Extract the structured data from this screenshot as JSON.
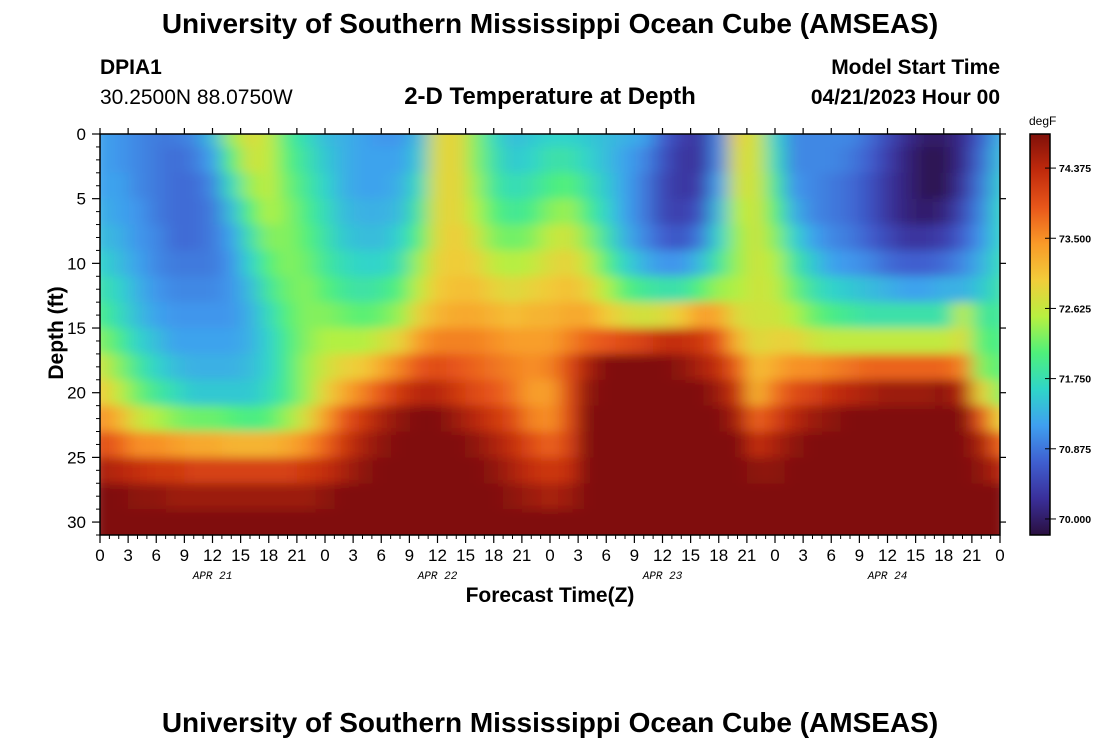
{
  "page": {
    "title_top": "University of Southern Mississippi Ocean Cube (AMSEAS)",
    "title_bottom": "University of Southern Mississippi Ocean Cube (AMSEAS)",
    "station_name": "DPIA1",
    "station_coords": "30.2500N  88.0750W",
    "model_start_label": "Model Start Time",
    "model_start_time": "04/21/2023 Hour 00"
  },
  "chart_data": {
    "type": "heatmap",
    "title": "2-D Temperature at Depth",
    "xlabel": "Forecast Time(Z)",
    "ylabel": "Depth (ft)",
    "x_range_hours": [
      0,
      96
    ],
    "y_range_ft": [
      0,
      31
    ],
    "y_ticks": [
      0,
      5,
      10,
      15,
      20,
      25,
      30
    ],
    "x_tick_labels": [
      "0",
      "3",
      "6",
      "9",
      "12",
      "15",
      "18",
      "21",
      "0",
      "3",
      "6",
      "9",
      "12",
      "15",
      "18",
      "21",
      "0",
      "3",
      "6",
      "9",
      "12",
      "15",
      "18",
      "21",
      "0",
      "3",
      "6",
      "9",
      "12",
      "15",
      "18",
      "21",
      "0"
    ],
    "date_labels": [
      {
        "label": "APR 21",
        "hour": 12
      },
      {
        "label": "APR 22",
        "hour": 36
      },
      {
        "label": "APR 23",
        "hour": 60
      },
      {
        "label": "APR 24",
        "hour": 84
      }
    ],
    "colorbar": {
      "unit": "degF",
      "min": 69.8,
      "max": 74.8,
      "tick_values": [
        70.0,
        70.875,
        71.75,
        72.625,
        73.5,
        74.375
      ],
      "tick_labels": [
        "70.000",
        "70.875",
        "71.750",
        "72.625",
        "73.500",
        "74.375"
      ],
      "colors": [
        "#2a0f3f",
        "#3a2f9a",
        "#3f5fd0",
        "#3f9ff0",
        "#2fd6c8",
        "#4ff07a",
        "#b8f040",
        "#f2cc3a",
        "#f99a28",
        "#e8561a",
        "#c02a0c",
        "#80100a"
      ]
    },
    "columns_hours": [
      0,
      2,
      4,
      6,
      8,
      10,
      12,
      14,
      16,
      18,
      20,
      22,
      24,
      26,
      28,
      30,
      32,
      34,
      36,
      38,
      40,
      42,
      44,
      46,
      48,
      50,
      52,
      54,
      56,
      58,
      60,
      62,
      64,
      66,
      68,
      70,
      72,
      74,
      76,
      78,
      80,
      82,
      84,
      86,
      88,
      90,
      92,
      94,
      96
    ],
    "rows_depth_ft": [
      0,
      2,
      4,
      6,
      8,
      10,
      12,
      14,
      16,
      18,
      20,
      22,
      24,
      26,
      28,
      30,
      31
    ],
    "values_degF": [
      [
        71.2,
        71.1,
        71.0,
        70.9,
        70.9,
        71.0,
        71.4,
        72.4,
        72.8,
        72.6,
        72.0,
        71.7,
        71.4,
        71.3,
        71.2,
        71.1,
        71.1,
        71.4,
        72.8,
        72.9,
        72.3,
        71.7,
        71.4,
        71.5,
        71.6,
        71.6,
        71.5,
        71.4,
        71.3,
        71.2,
        70.7,
        70.4,
        70.3,
        71.0,
        72.9,
        72.7,
        71.6,
        71.0,
        71.0,
        71.0,
        71.0,
        70.8,
        70.5,
        70.2,
        70.0,
        70.0,
        70.2,
        70.7,
        71.3
      ],
      [
        71.2,
        71.1,
        71.0,
        70.9,
        70.8,
        70.9,
        71.2,
        72.1,
        72.7,
        72.6,
        72.1,
        71.8,
        71.5,
        71.3,
        71.2,
        71.2,
        71.2,
        71.5,
        72.8,
        72.9,
        72.3,
        71.8,
        71.5,
        71.6,
        71.8,
        71.8,
        71.6,
        71.4,
        71.2,
        71.0,
        70.6,
        70.3,
        70.3,
        71.0,
        72.8,
        72.7,
        71.7,
        71.0,
        71.0,
        71.0,
        70.9,
        70.7,
        70.4,
        70.1,
        69.9,
        69.9,
        70.2,
        70.8,
        71.4
      ],
      [
        71.2,
        71.2,
        71.0,
        70.9,
        70.8,
        70.8,
        71.0,
        71.7,
        72.4,
        72.6,
        72.2,
        71.9,
        71.6,
        71.3,
        71.2,
        71.2,
        71.3,
        71.7,
        72.8,
        72.9,
        72.4,
        71.9,
        71.7,
        71.8,
        72.0,
        72.1,
        71.8,
        71.5,
        71.2,
        70.9,
        70.5,
        70.3,
        70.4,
        71.2,
        72.7,
        72.7,
        71.9,
        71.1,
        71.0,
        70.9,
        70.8,
        70.6,
        70.3,
        70.1,
        69.9,
        69.9,
        70.3,
        70.9,
        71.5
      ],
      [
        71.3,
        71.2,
        71.1,
        70.9,
        70.8,
        70.8,
        70.9,
        71.4,
        72.1,
        72.5,
        72.3,
        72.0,
        71.7,
        71.4,
        71.3,
        71.3,
        71.4,
        71.9,
        72.8,
        72.9,
        72.5,
        72.1,
        71.9,
        72.0,
        72.3,
        72.4,
        72.0,
        71.6,
        71.2,
        70.9,
        70.5,
        70.4,
        70.6,
        71.4,
        72.5,
        72.7,
        72.1,
        71.3,
        71.0,
        70.9,
        70.8,
        70.6,
        70.3,
        70.1,
        70.0,
        70.1,
        70.5,
        71.0,
        71.6
      ],
      [
        71.4,
        71.3,
        71.1,
        71.0,
        70.8,
        70.8,
        70.9,
        71.2,
        71.8,
        72.3,
        72.3,
        72.1,
        71.8,
        71.5,
        71.4,
        71.4,
        71.6,
        72.1,
        72.8,
        73.0,
        72.7,
        72.3,
        72.2,
        72.3,
        72.6,
        72.7,
        72.3,
        71.8,
        71.3,
        71.0,
        70.7,
        70.6,
        70.9,
        71.6,
        72.4,
        72.7,
        72.3,
        71.6,
        71.2,
        71.0,
        70.9,
        70.7,
        70.5,
        70.3,
        70.3,
        70.4,
        70.7,
        71.1,
        71.6
      ],
      [
        71.6,
        71.4,
        71.2,
        71.0,
        70.9,
        70.9,
        70.9,
        71.1,
        71.6,
        72.1,
        72.3,
        72.2,
        71.9,
        71.7,
        71.6,
        71.6,
        71.8,
        72.4,
        72.9,
        73.0,
        72.9,
        72.6,
        72.5,
        72.6,
        72.8,
        72.9,
        72.6,
        72.1,
        71.6,
        71.3,
        71.1,
        71.1,
        71.4,
        71.9,
        72.4,
        72.7,
        72.5,
        71.9,
        71.5,
        71.2,
        71.1,
        71.0,
        70.8,
        70.7,
        70.7,
        70.8,
        71.0,
        71.3,
        71.7
      ],
      [
        71.8,
        71.6,
        71.3,
        71.1,
        71.0,
        71.0,
        71.0,
        71.1,
        71.4,
        71.9,
        72.2,
        72.3,
        72.1,
        71.9,
        71.8,
        71.9,
        72.1,
        72.6,
        73.0,
        73.1,
        73.1,
        72.9,
        72.8,
        72.9,
        73.0,
        73.1,
        72.9,
        72.5,
        72.1,
        71.9,
        71.8,
        71.8,
        72.1,
        72.4,
        72.5,
        72.7,
        72.6,
        72.2,
        71.8,
        71.6,
        71.5,
        71.4,
        71.3,
        71.2,
        71.2,
        71.3,
        71.3,
        71.5,
        71.8
      ],
      [
        72.0,
        71.7,
        71.4,
        71.2,
        71.1,
        71.1,
        71.1,
        71.1,
        71.3,
        71.7,
        72.1,
        72.3,
        72.3,
        72.2,
        72.1,
        72.2,
        72.4,
        72.9,
        73.2,
        73.3,
        73.3,
        73.2,
        73.1,
        73.2,
        73.2,
        73.3,
        73.3,
        73.0,
        72.8,
        72.7,
        72.8,
        73.0,
        73.4,
        73.3,
        72.8,
        72.7,
        72.7,
        72.5,
        72.2,
        72.0,
        71.9,
        71.8,
        71.8,
        71.8,
        71.8,
        71.8,
        72.6,
        71.9,
        71.9
      ],
      [
        72.3,
        72.0,
        71.6,
        71.4,
        71.2,
        71.2,
        71.2,
        71.2,
        71.3,
        71.6,
        72.0,
        72.3,
        72.5,
        72.5,
        72.5,
        72.7,
        72.9,
        73.4,
        73.6,
        73.6,
        73.6,
        73.5,
        73.4,
        73.4,
        73.4,
        73.6,
        73.8,
        73.9,
        74.0,
        74.1,
        74.3,
        74.3,
        74.2,
        73.9,
        73.2,
        72.8,
        72.9,
        72.9,
        72.7,
        72.6,
        72.6,
        72.6,
        72.6,
        72.6,
        72.6,
        72.6,
        72.8,
        72.1,
        72.0
      ],
      [
        72.7,
        72.3,
        71.9,
        71.6,
        71.4,
        71.3,
        71.3,
        71.3,
        71.4,
        71.6,
        72.0,
        72.4,
        72.7,
        72.9,
        73.0,
        73.3,
        73.6,
        73.9,
        74.0,
        73.9,
        73.8,
        73.7,
        73.6,
        73.5,
        73.6,
        74.0,
        74.5,
        74.8,
        74.9,
        74.9,
        74.8,
        74.7,
        74.5,
        74.3,
        73.8,
        73.1,
        73.3,
        73.5,
        73.5,
        73.6,
        73.7,
        73.8,
        73.8,
        73.8,
        73.8,
        73.8,
        73.6,
        72.3,
        72.1
      ],
      [
        73.0,
        72.6,
        72.2,
        71.9,
        71.7,
        71.5,
        71.5,
        71.5,
        71.5,
        71.7,
        72.0,
        72.4,
        72.9,
        73.3,
        73.6,
        73.9,
        74.2,
        74.4,
        74.4,
        74.2,
        74.0,
        73.9,
        73.7,
        73.4,
        73.4,
        74.0,
        74.7,
        75.0,
        75.0,
        75.0,
        74.9,
        74.8,
        74.8,
        74.6,
        74.2,
        73.2,
        73.7,
        74.0,
        74.1,
        74.3,
        74.4,
        74.5,
        74.6,
        74.6,
        74.6,
        74.7,
        74.4,
        72.9,
        72.3
      ],
      [
        73.5,
        73.2,
        72.7,
        72.5,
        72.3,
        72.2,
        72.2,
        72.1,
        72.0,
        72.1,
        72.4,
        72.8,
        73.4,
        73.9,
        74.2,
        74.5,
        74.7,
        74.8,
        74.8,
        74.6,
        74.4,
        74.2,
        74.0,
        73.6,
        73.5,
        74.0,
        74.8,
        75.0,
        75.0,
        75.0,
        75.0,
        74.9,
        74.9,
        74.8,
        74.5,
        73.8,
        74.1,
        74.4,
        74.6,
        74.7,
        74.8,
        74.9,
        74.9,
        74.9,
        74.9,
        74.9,
        74.8,
        73.9,
        72.9
      ],
      [
        74.0,
        73.8,
        73.5,
        73.5,
        73.4,
        73.3,
        73.3,
        73.2,
        73.2,
        73.2,
        73.3,
        73.5,
        73.8,
        74.2,
        74.5,
        74.7,
        74.8,
        74.9,
        74.9,
        74.8,
        74.7,
        74.5,
        74.3,
        74.0,
        73.8,
        74.1,
        74.8,
        75.0,
        75.0,
        75.0,
        75.0,
        75.0,
        75.0,
        74.9,
        74.8,
        74.3,
        74.5,
        74.7,
        74.8,
        74.9,
        75.0,
        75.0,
        75.0,
        75.0,
        75.0,
        75.0,
        74.9,
        74.5,
        73.8
      ],
      [
        74.5,
        74.4,
        74.3,
        74.2,
        74.2,
        74.1,
        74.1,
        74.1,
        74.1,
        74.1,
        74.1,
        74.2,
        74.3,
        74.5,
        74.7,
        74.8,
        74.9,
        75.0,
        75.0,
        74.9,
        74.8,
        74.7,
        74.5,
        74.3,
        74.2,
        74.3,
        74.8,
        75.0,
        75.0,
        75.0,
        75.0,
        75.0,
        75.0,
        75.0,
        74.9,
        74.7,
        74.7,
        74.8,
        74.9,
        75.0,
        75.0,
        75.0,
        75.0,
        75.0,
        75.0,
        75.0,
        74.9,
        74.7,
        74.4
      ],
      [
        74.8,
        74.8,
        74.7,
        74.7,
        74.6,
        74.6,
        74.6,
        74.6,
        74.6,
        74.6,
        74.6,
        74.6,
        74.7,
        74.8,
        74.9,
        74.9,
        75.0,
        75.0,
        75.0,
        75.0,
        74.9,
        74.8,
        74.7,
        74.6,
        74.5,
        74.6,
        74.9,
        75.0,
        75.0,
        75.0,
        75.0,
        75.0,
        75.0,
        75.0,
        75.0,
        74.9,
        74.9,
        74.9,
        75.0,
        75.0,
        75.0,
        75.0,
        75.0,
        75.0,
        75.0,
        75.0,
        75.0,
        74.9,
        74.8
      ],
      [
        75.0,
        75.0,
        75.0,
        75.0,
        74.9,
        74.9,
        74.9,
        74.9,
        74.9,
        74.9,
        74.9,
        74.9,
        74.9,
        75.0,
        75.0,
        75.0,
        75.0,
        75.0,
        75.0,
        75.0,
        75.0,
        75.0,
        74.9,
        74.8,
        74.8,
        74.9,
        75.0,
        75.0,
        75.0,
        75.0,
        75.0,
        75.0,
        75.0,
        75.0,
        75.0,
        75.0,
        75.0,
        75.0,
        75.0,
        75.0,
        75.0,
        75.0,
        75.0,
        75.0,
        75.0,
        75.0,
        75.0,
        75.0,
        75.0
      ],
      [
        75.0,
        75.0,
        75.0,
        75.0,
        75.0,
        75.0,
        75.0,
        75.0,
        75.0,
        75.0,
        75.0,
        75.0,
        75.0,
        75.0,
        75.0,
        75.0,
        75.0,
        75.0,
        75.0,
        75.0,
        75.0,
        75.0,
        75.0,
        75.0,
        75.0,
        75.0,
        75.0,
        75.0,
        75.0,
        75.0,
        75.0,
        75.0,
        75.0,
        75.0,
        75.0,
        75.0,
        75.0,
        75.0,
        75.0,
        75.0,
        75.0,
        75.0,
        75.0,
        75.0,
        75.0,
        75.0,
        75.0,
        75.0,
        75.0
      ]
    ]
  }
}
